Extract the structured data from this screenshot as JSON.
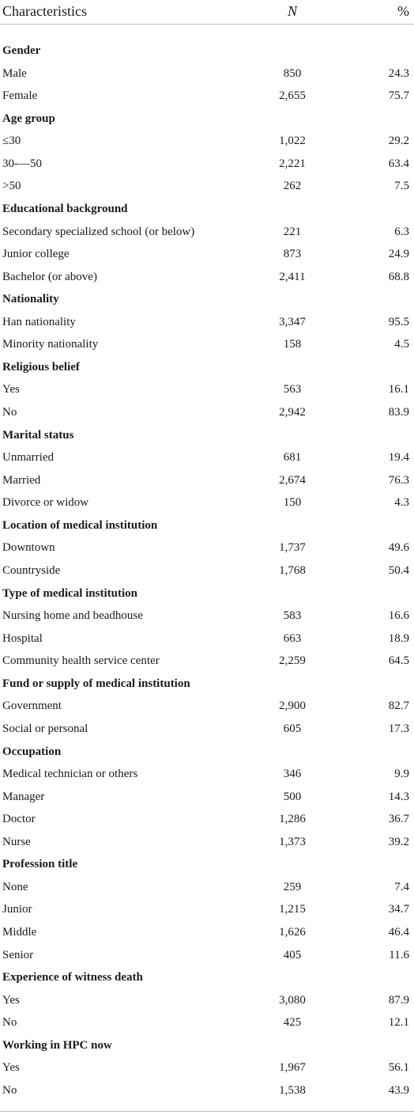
{
  "table": {
    "header": [
      "Characteristics",
      "N",
      "%"
    ],
    "rows": [
      {
        "section": "Gender"
      },
      {
        "label": "Male",
        "n": "850",
        "pct": "24.3"
      },
      {
        "label": "Female",
        "n": "2,655",
        "pct": "75.7"
      },
      {
        "section": "Age group"
      },
      {
        "label": "≤30",
        "n": "1,022",
        "pct": "29.2"
      },
      {
        "label": "30-—50",
        "n": "2,221",
        "pct": "63.4"
      },
      {
        "label": ">50",
        "n": "262",
        "pct": "7.5"
      },
      {
        "section": "Educational background"
      },
      {
        "label": "Secondary specialized school (or below)",
        "n": "221",
        "pct": "6.3"
      },
      {
        "label": "Junior college",
        "n": "873",
        "pct": "24.9"
      },
      {
        "label": "Bachelor (or above)",
        "n": "2,411",
        "pct": "68.8"
      },
      {
        "section": "Nationality"
      },
      {
        "label": "Han nationality",
        "n": "3,347",
        "pct": "95.5"
      },
      {
        "label": "Minority nationality",
        "n": "158",
        "pct": "4.5"
      },
      {
        "section": "Religious belief"
      },
      {
        "label": "Yes",
        "n": "563",
        "pct": "16.1"
      },
      {
        "label": "No",
        "n": "2,942",
        "pct": "83.9"
      },
      {
        "section": "Marital status"
      },
      {
        "label": "Unmarried",
        "n": "681",
        "pct": "19.4"
      },
      {
        "label": "Married",
        "n": "2,674",
        "pct": "76.3"
      },
      {
        "label": "Divorce or widow",
        "n": "150",
        "pct": "4.3"
      },
      {
        "section": "Location of medical institution"
      },
      {
        "label": "Downtown",
        "n": "1,737",
        "pct": "49.6"
      },
      {
        "label": "Countryside",
        "n": "1,768",
        "pct": "50.4"
      },
      {
        "section": "Type of medical institution"
      },
      {
        "label": "Nursing home and beadhouse",
        "n": "583",
        "pct": "16.6"
      },
      {
        "label": "Hospital",
        "n": "663",
        "pct": "18.9"
      },
      {
        "label": "Community health service center",
        "n": "2,259",
        "pct": "64.5"
      },
      {
        "section": "Fund or supply of medical institution"
      },
      {
        "label": "Government",
        "n": "2,900",
        "pct": "82.7"
      },
      {
        "label": "Social or personal",
        "n": "605",
        "pct": "17.3"
      },
      {
        "section": "Occupation"
      },
      {
        "label": "Medical technician or others",
        "n": "346",
        "pct": "9.9"
      },
      {
        "label": "Manager",
        "n": "500",
        "pct": "14.3"
      },
      {
        "label": "Doctor",
        "n": "1,286",
        "pct": "36.7"
      },
      {
        "label": "Nurse",
        "n": "1,373",
        "pct": "39.2"
      },
      {
        "section": "Profession title"
      },
      {
        "label": "None",
        "n": "259",
        "pct": "7.4"
      },
      {
        "label": "Junior",
        "n": "1,215",
        "pct": "34.7"
      },
      {
        "label": "Middle",
        "n": "1,626",
        "pct": "46.4"
      },
      {
        "label": "Senior",
        "n": "405",
        "pct": "11.6"
      },
      {
        "section": "Experience of witness death"
      },
      {
        "label": "Yes",
        "n": "3,080",
        "pct": "87.9"
      },
      {
        "label": "No",
        "n": "425",
        "pct": "12.1"
      },
      {
        "section": "Working in HPC now"
      },
      {
        "label": "Yes",
        "n": "1,967",
        "pct": "56.1"
      },
      {
        "label": "No",
        "n": "1,538",
        "pct": "43.9"
      }
    ]
  }
}
